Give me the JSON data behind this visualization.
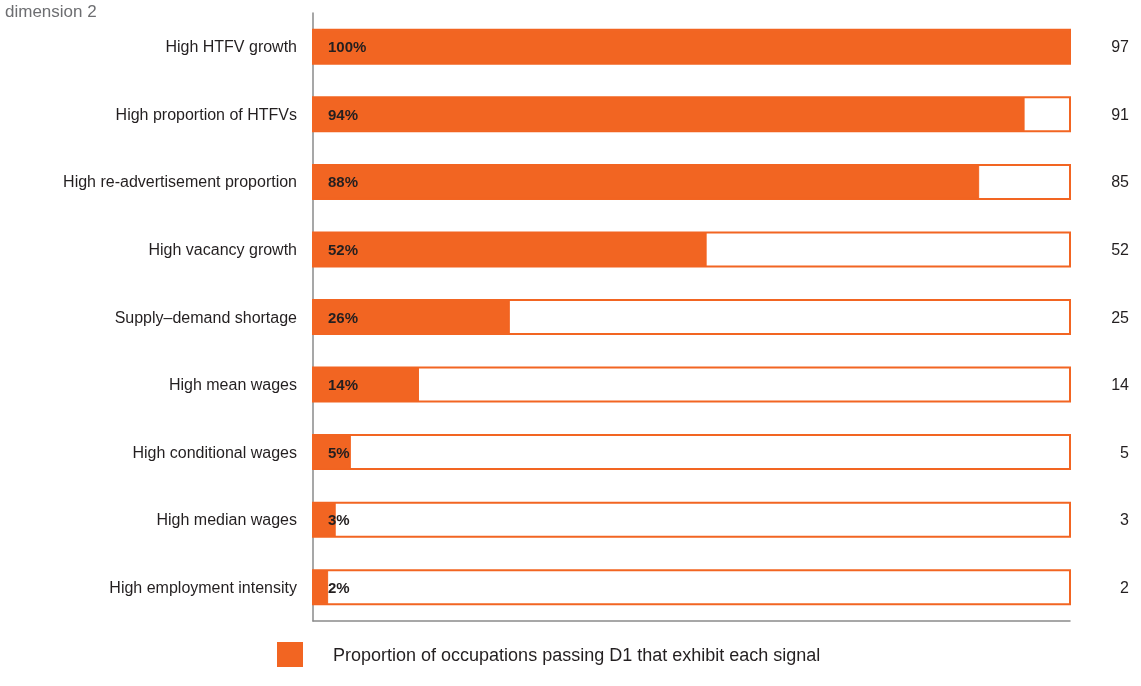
{
  "chart_data": {
    "type": "bar",
    "orientation": "horizontal",
    "title": "dimension 2",
    "categories": [
      "High HTFV growth",
      "High proportion of HTFVs",
      "High re-advertisement proportion",
      "High vacancy growth",
      "Supply–demand shortage",
      "High mean wages",
      "High conditional wages",
      "High median wages",
      "High employment intensity"
    ],
    "series": [
      {
        "name": "Proportion of occupations passing D1 that exhibit each signal",
        "color": "#f26522",
        "values": [
          100,
          94,
          88,
          52,
          26,
          14,
          5,
          3,
          2
        ],
        "value_labels": [
          "100%",
          "94%",
          "88%",
          "52%",
          "26%",
          "14%",
          "5%",
          "3%",
          "2%"
        ]
      }
    ],
    "y2_categories": [
      "97",
      "91",
      "85",
      "52",
      "25",
      "14",
      "5",
      "3",
      "2"
    ],
    "xlim": [
      0,
      100
    ],
    "legend": "bottom",
    "tick_labels": "y"
  }
}
